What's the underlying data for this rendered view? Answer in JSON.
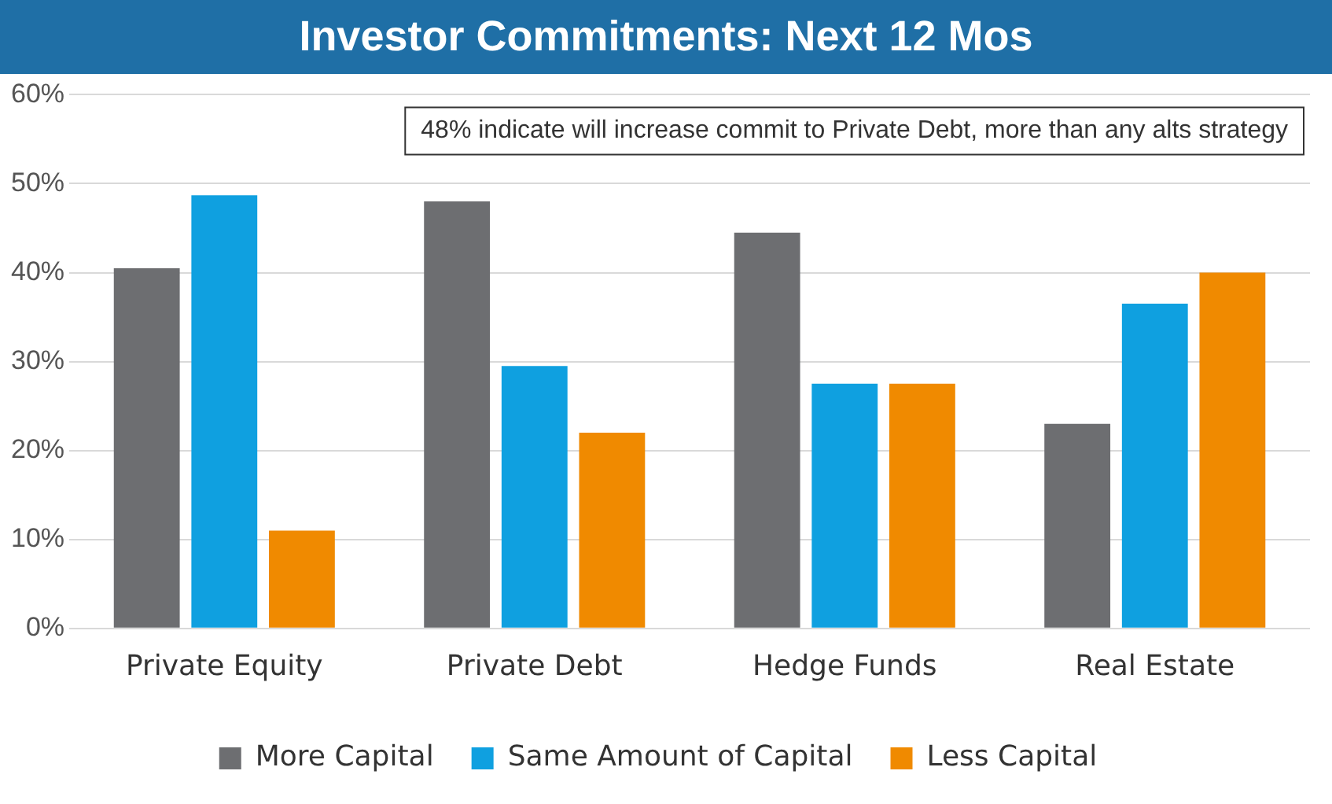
{
  "chart_data": {
    "type": "bar",
    "title": "Investor Commitments: Next 12 Mos",
    "categories": [
      "Private Equity",
      "Private Debt",
      "Hedge Funds",
      "Real Estate"
    ],
    "series": [
      {
        "name": "More Capital",
        "color": "#6d6e71",
        "values": [
          40.5,
          48,
          44.5,
          23
        ]
      },
      {
        "name": "Same Amount of Capital",
        "color": "#0fa0e0",
        "values": [
          48.7,
          29.5,
          27.5,
          36.5
        ]
      },
      {
        "name": "Less Capital",
        "color": "#f08a00",
        "values": [
          11,
          22,
          27.5,
          40
        ]
      }
    ],
    "ylim": [
      0,
      60
    ],
    "yticks": [
      {
        "value": 0,
        "label": "0%"
      },
      {
        "value": 10,
        "label": "10%"
      },
      {
        "value": 20,
        "label": "20%"
      },
      {
        "value": 30,
        "label": "30%"
      },
      {
        "value": 40,
        "label": "40%"
      },
      {
        "value": 50,
        "label": "50%"
      },
      {
        "value": 60,
        "label": "60%"
      }
    ],
    "grid": "y",
    "legend": "bottom",
    "annotations": [
      "48% indicate will increase commit to Private Debt, more than any alts strategy"
    ]
  }
}
